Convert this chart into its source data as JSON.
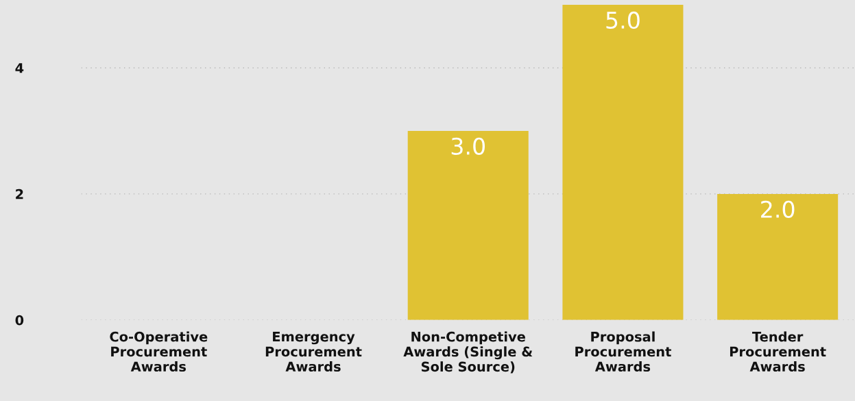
{
  "chart_data": {
    "type": "bar",
    "categories": [
      "Co-Operative\nProcurement\nAwards",
      "Emergency\nProcurement\nAwards",
      "Non-Competive\nAwards (Single &\nSole Source)",
      "Proposal\nProcurement\nAwards",
      "Tender\nProcurement\nAwards"
    ],
    "values": [
      null,
      null,
      3.0,
      5.0,
      2.0
    ],
    "value_labels": [
      null,
      null,
      "3.0",
      "5.0",
      "2.0"
    ],
    "color": "#e0c233",
    "ylim": [
      0,
      5
    ],
    "yticks": [
      0,
      2,
      4
    ],
    "grid": "y"
  }
}
